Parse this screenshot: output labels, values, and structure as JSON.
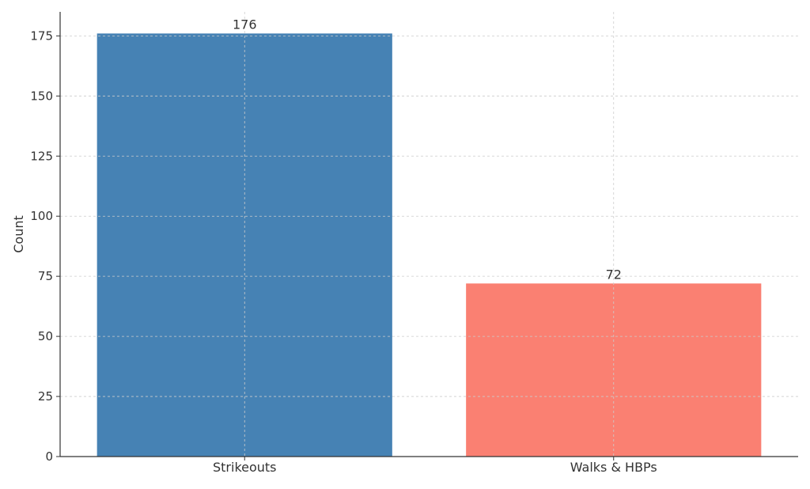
{
  "chart_data": {
    "type": "bar",
    "title": "",
    "xlabel": "",
    "ylabel": "Count",
    "categories": [
      "Strikeouts",
      "Walks & HBPs"
    ],
    "values": [
      176,
      72
    ],
    "bar_colors": [
      "#4682b4",
      "#fa8072"
    ],
    "data_labels": [
      "176",
      "72"
    ],
    "ylim": [
      0,
      185
    ],
    "y_ticks": [
      0,
      25,
      50,
      75,
      100,
      125,
      150,
      175
    ],
    "grid": true
  }
}
